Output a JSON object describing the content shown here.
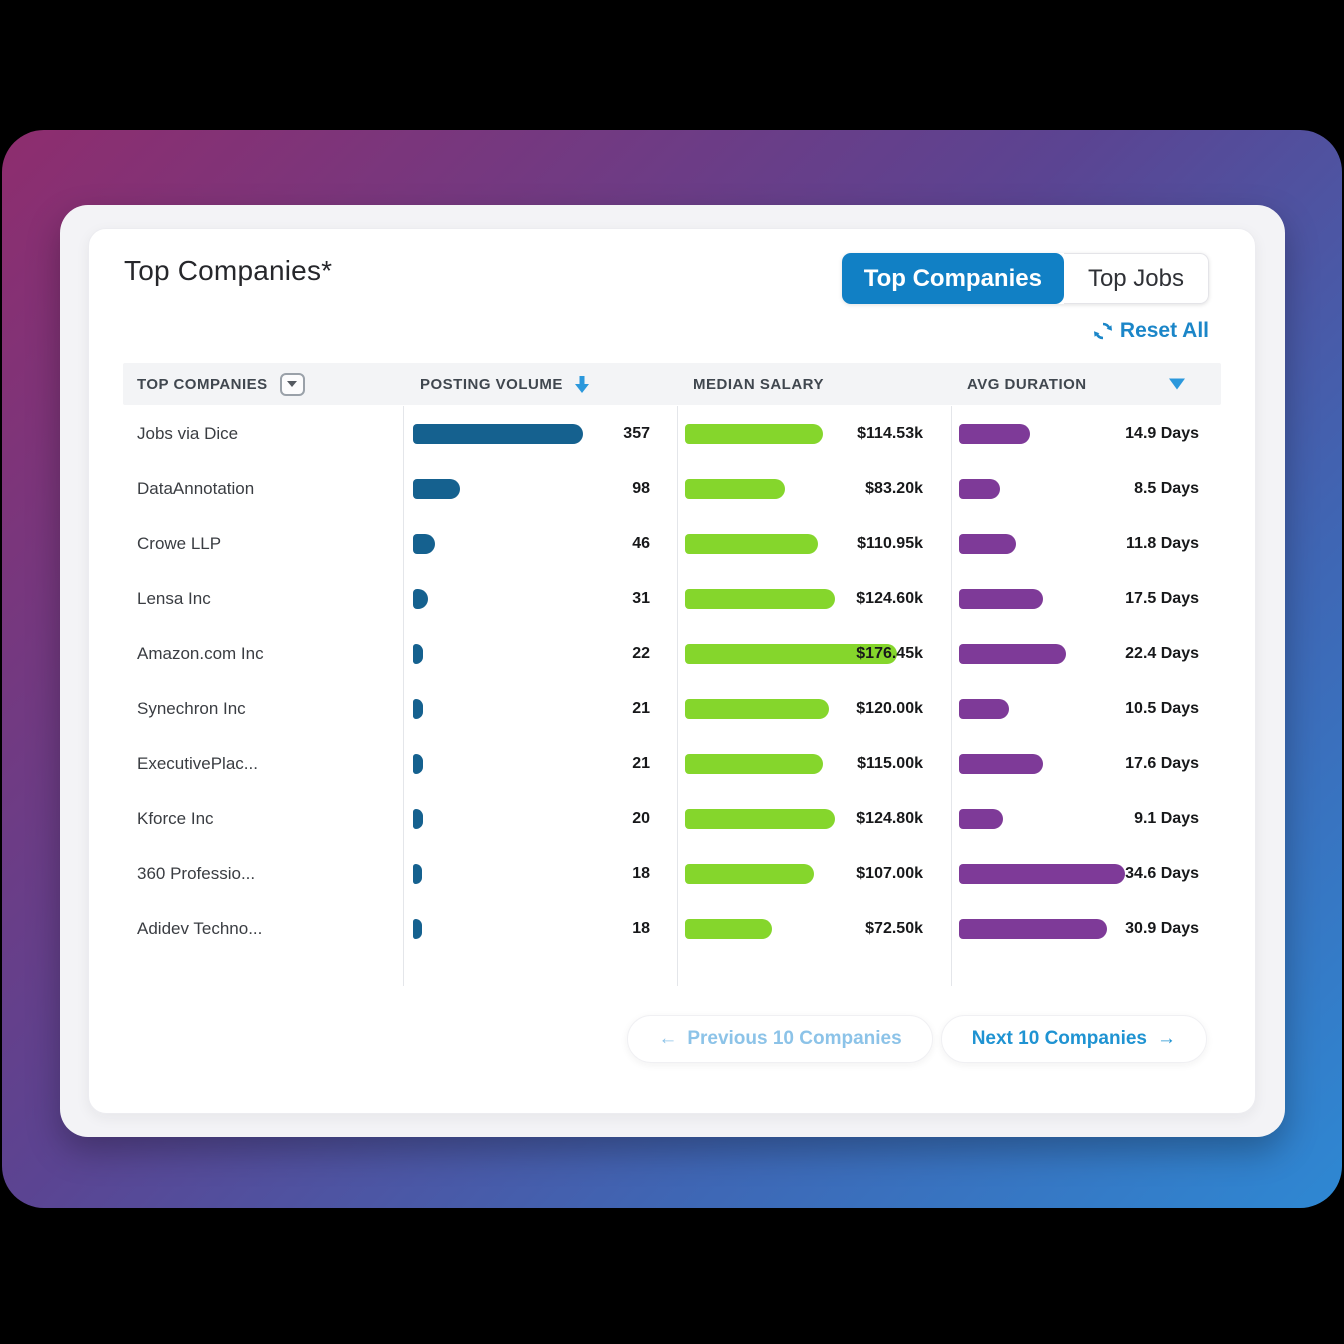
{
  "card": {
    "title": "Top Companies*",
    "toggle": {
      "active": "Top Companies",
      "inactive": "Top Jobs"
    },
    "reset_label": "Reset All"
  },
  "table": {
    "headers": [
      "TOP COMPANIES",
      "POSTING VOLUME",
      "MEDIAN SALARY",
      "AVG DURATION"
    ],
    "rows": [
      {
        "company": "Jobs via Dice",
        "volume": 357,
        "volume_label": "357",
        "salary": 114.53,
        "salary_label": "$114.53k",
        "duration": 14.9,
        "duration_label": "14.9 Days"
      },
      {
        "company": "DataAnnotation",
        "volume": 98,
        "volume_label": "98",
        "salary": 83.2,
        "salary_label": "$83.20k",
        "duration": 8.5,
        "duration_label": "8.5 Days"
      },
      {
        "company": "Crowe LLP",
        "volume": 46,
        "volume_label": "46",
        "salary": 110.95,
        "salary_label": "$110.95k",
        "duration": 11.8,
        "duration_label": "11.8 Days"
      },
      {
        "company": "Lensa Inc",
        "volume": 31,
        "volume_label": "31",
        "salary": 124.6,
        "salary_label": "$124.60k",
        "duration": 17.5,
        "duration_label": "17.5 Days"
      },
      {
        "company": "Amazon.com Inc",
        "volume": 22,
        "volume_label": "22",
        "salary": 176.45,
        "salary_label": "$176.45k",
        "duration": 22.4,
        "duration_label": "22.4 Days"
      },
      {
        "company": "Synechron Inc",
        "volume": 21,
        "volume_label": "21",
        "salary": 120.0,
        "salary_label": "$120.00k",
        "duration": 10.5,
        "duration_label": "10.5 Days"
      },
      {
        "company": "ExecutivePlac...",
        "volume": 21,
        "volume_label": "21",
        "salary": 115.0,
        "salary_label": "$115.00k",
        "duration": 17.6,
        "duration_label": "17.6 Days"
      },
      {
        "company": "Kforce Inc",
        "volume": 20,
        "volume_label": "20",
        "salary": 124.8,
        "salary_label": "$124.80k",
        "duration": 9.1,
        "duration_label": "9.1 Days"
      },
      {
        "company": "360 Professio...",
        "volume": 18,
        "volume_label": "18",
        "salary": 107.0,
        "salary_label": "$107.00k",
        "duration": 34.6,
        "duration_label": "34.6 Days"
      },
      {
        "company": "Adidev Techno...",
        "volume": 18,
        "volume_label": "18",
        "salary": 72.5,
        "salary_label": "$72.50k",
        "duration": 30.9,
        "duration_label": "30.9 Days"
      }
    ]
  },
  "pagination": {
    "prev_arrow": "←",
    "prev_label": "Previous 10 Companies",
    "next_label": "Next 10 Companies",
    "next_arrow": "→"
  },
  "icons": [
    "dropdown-icon",
    "sort-down-arrow-icon",
    "sort-triangle-icon",
    "refresh-icon",
    "arrow-left-icon",
    "arrow-right-icon"
  ],
  "colors": {
    "volume_bar": "#15618f",
    "salary_bar": "#85d62c",
    "duration_bar": "#7e3a98",
    "toggle_active": "#1180c5",
    "link_blue": "#1b86c8",
    "next_btn_text": "#1f93d2",
    "prev_btn_text": "#8cc3e8",
    "gradient_start": "#8e2d6e",
    "gradient_end": "#2e88d3"
  }
}
